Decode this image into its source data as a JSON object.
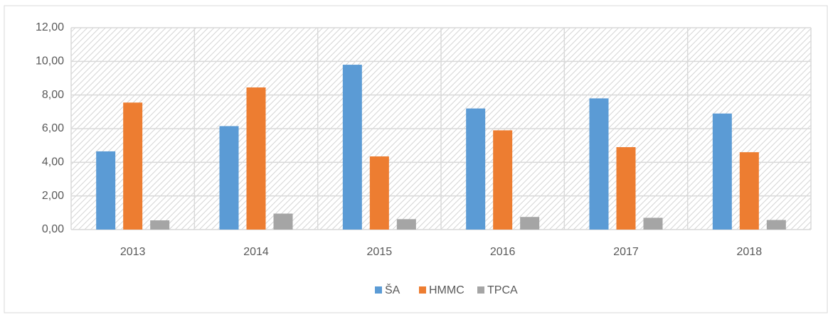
{
  "chart_data": {
    "type": "bar",
    "categories": [
      "2013",
      "2014",
      "2015",
      "2016",
      "2017",
      "2018"
    ],
    "series": [
      {
        "name": "ŠA",
        "color": "#5b9bd5",
        "values": [
          4.65,
          6.15,
          9.8,
          7.2,
          7.8,
          6.9
        ]
      },
      {
        "name": "HMMC",
        "color": "#ed7d31",
        "values": [
          7.55,
          8.45,
          4.35,
          5.9,
          4.9,
          4.6
        ]
      },
      {
        "name": "TPCA",
        "color": "#a5a5a5",
        "values": [
          0.55,
          0.95,
          0.62,
          0.75,
          0.7,
          0.57
        ]
      }
    ],
    "ylim": [
      0,
      12
    ],
    "yticks": [
      {
        "value": 0,
        "label": "0,00"
      },
      {
        "value": 2,
        "label": "2,00"
      },
      {
        "value": 4,
        "label": "4,00"
      },
      {
        "value": 6,
        "label": "6,00"
      },
      {
        "value": 8,
        "label": "8,00"
      },
      {
        "value": 10,
        "label": "10,00"
      },
      {
        "value": 12,
        "label": "12,00"
      }
    ],
    "grid": true,
    "legend": "bottom"
  }
}
